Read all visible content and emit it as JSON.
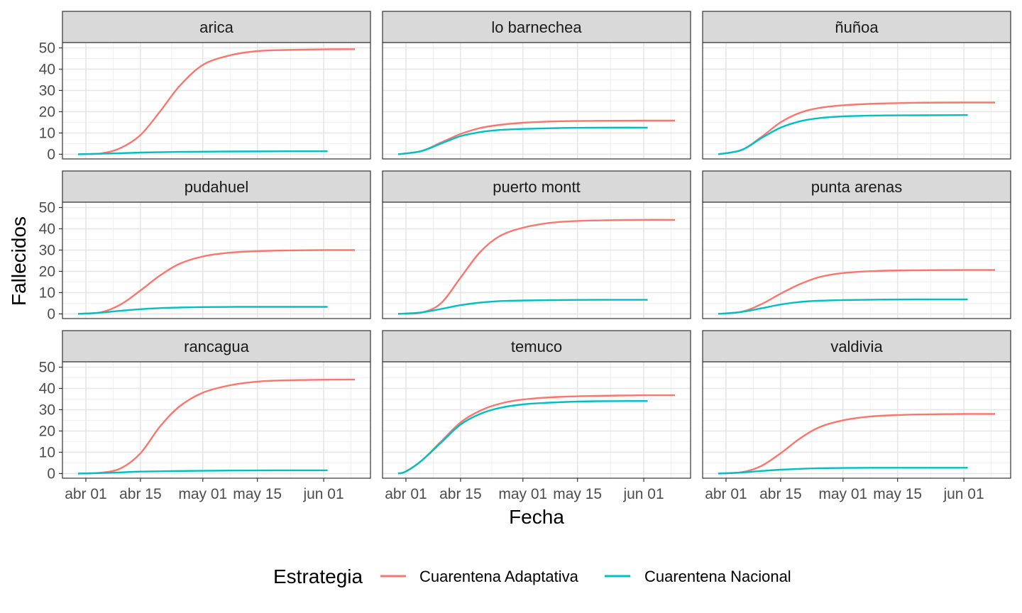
{
  "chart_data": {
    "type": "line",
    "layout": "facet-grid-3x3",
    "xlabel": "Fecha",
    "ylabel": "Fallecidos",
    "ylim": [
      0,
      50
    ],
    "y_ticks": [
      0,
      10,
      20,
      30,
      40,
      50
    ],
    "x_ticks": [
      {
        "date": "2020-04-01",
        "label": "abr 01"
      },
      {
        "date": "2020-04-15",
        "label": "abr 15"
      },
      {
        "date": "2020-05-01",
        "label": "may 01"
      },
      {
        "date": "2020-05-15",
        "label": "may 15"
      },
      {
        "date": "2020-06-01",
        "label": "jun 01"
      }
    ],
    "grid": true,
    "legend": {
      "title": "Estrategia",
      "position": "bottom",
      "entries": [
        {
          "label": "Cuarentena Adaptativa",
          "color": "#f8766d"
        },
        {
          "label": "Cuarentena Nacional",
          "color": "#00bfc4"
        }
      ]
    },
    "panels": [
      {
        "title": "arica",
        "series": [
          {
            "name": "Cuarentena Adaptativa",
            "x": [
              "2020-03-30",
              "2020-04-05",
              "2020-04-10",
              "2020-04-15",
              "2020-04-20",
              "2020-04-25",
              "2020-05-01",
              "2020-05-08",
              "2020-05-15",
              "2020-05-22",
              "2020-06-01",
              "2020-06-09"
            ],
            "y": [
              0,
              0.4,
              3,
              9,
              20,
              32,
              42,
              46.5,
              48.5,
              49,
              49.3,
              49.4
            ]
          },
          {
            "name": "Cuarentena Nacional",
            "x": [
              "2020-03-30",
              "2020-04-08",
              "2020-04-15",
              "2020-04-25",
              "2020-05-08",
              "2020-05-22",
              "2020-06-02"
            ],
            "y": [
              0,
              0.4,
              0.8,
              1.1,
              1.3,
              1.4,
              1.4
            ]
          }
        ]
      },
      {
        "title": "lo barnechea",
        "series": [
          {
            "name": "Cuarentena Adaptativa",
            "x": [
              "2020-03-30",
              "2020-04-05",
              "2020-04-10",
              "2020-04-15",
              "2020-04-20",
              "2020-04-25",
              "2020-05-01",
              "2020-05-10",
              "2020-05-20",
              "2020-06-01",
              "2020-06-09"
            ],
            "y": [
              0,
              1.5,
              5.5,
              9.5,
              12.3,
              13.8,
              14.8,
              15.5,
              15.7,
              15.8,
              15.8
            ]
          },
          {
            "name": "Cuarentena Nacional",
            "x": [
              "2020-03-30",
              "2020-04-05",
              "2020-04-10",
              "2020-04-15",
              "2020-04-20",
              "2020-04-25",
              "2020-05-01",
              "2020-05-10",
              "2020-05-20",
              "2020-06-02"
            ],
            "y": [
              0,
              1.5,
              5,
              8.5,
              10.4,
              11.4,
              11.9,
              12.3,
              12.5,
              12.5
            ]
          }
        ]
      },
      {
        "title": "ñuñoa",
        "series": [
          {
            "name": "Cuarentena Adaptativa",
            "x": [
              "2020-03-30",
              "2020-04-05",
              "2020-04-10",
              "2020-04-15",
              "2020-04-20",
              "2020-04-25",
              "2020-05-01",
              "2020-05-10",
              "2020-05-20",
              "2020-06-01",
              "2020-06-09"
            ],
            "y": [
              0,
              2,
              8,
              15,
              19.5,
              21.8,
              23,
              23.8,
              24.2,
              24.3,
              24.3
            ]
          },
          {
            "name": "Cuarentena Nacional",
            "x": [
              "2020-03-30",
              "2020-04-05",
              "2020-04-10",
              "2020-04-15",
              "2020-04-20",
              "2020-04-25",
              "2020-05-01",
              "2020-05-10",
              "2020-05-20",
              "2020-06-02"
            ],
            "y": [
              0,
              2,
              7.5,
              12.5,
              15.5,
              17,
              17.8,
              18.2,
              18.3,
              18.4
            ]
          }
        ]
      },
      {
        "title": "pudahuel",
        "series": [
          {
            "name": "Cuarentena Adaptativa",
            "x": [
              "2020-03-30",
              "2020-04-05",
              "2020-04-10",
              "2020-04-15",
              "2020-04-20",
              "2020-04-25",
              "2020-05-01",
              "2020-05-08",
              "2020-05-15",
              "2020-05-22",
              "2020-06-01",
              "2020-06-09"
            ],
            "y": [
              0,
              0.8,
              4.5,
              11,
              18,
              23.5,
              27,
              28.8,
              29.5,
              29.8,
              30,
              30
            ]
          },
          {
            "name": "Cuarentena Nacional",
            "x": [
              "2020-03-30",
              "2020-04-05",
              "2020-04-10",
              "2020-04-15",
              "2020-04-20",
              "2020-04-25",
              "2020-05-01",
              "2020-05-10",
              "2020-05-20",
              "2020-06-02"
            ],
            "y": [
              0,
              0.6,
              1.5,
              2.2,
              2.7,
              3,
              3.2,
              3.3,
              3.3,
              3.3
            ]
          }
        ]
      },
      {
        "title": "puerto montt",
        "series": [
          {
            "name": "Cuarentena Adaptativa",
            "x": [
              "2020-03-30",
              "2020-04-05",
              "2020-04-10",
              "2020-04-15",
              "2020-04-20",
              "2020-04-25",
              "2020-05-01",
              "2020-05-08",
              "2020-05-15",
              "2020-05-22",
              "2020-06-01",
              "2020-06-09"
            ],
            "y": [
              0,
              0.6,
              5,
              17,
              29,
              36.5,
              40.5,
              42.8,
              43.7,
              44,
              44.2,
              44.2
            ]
          },
          {
            "name": "Cuarentena Nacional",
            "x": [
              "2020-03-30",
              "2020-04-05",
              "2020-04-10",
              "2020-04-15",
              "2020-04-20",
              "2020-04-25",
              "2020-05-01",
              "2020-05-10",
              "2020-05-20",
              "2020-06-02"
            ],
            "y": [
              0,
              0.7,
              2.3,
              4.1,
              5.3,
              6,
              6.3,
              6.5,
              6.6,
              6.6
            ]
          }
        ]
      },
      {
        "title": "punta arenas",
        "series": [
          {
            "name": "Cuarentena Adaptativa",
            "x": [
              "2020-03-30",
              "2020-04-05",
              "2020-04-10",
              "2020-04-15",
              "2020-04-20",
              "2020-04-25",
              "2020-05-01",
              "2020-05-10",
              "2020-05-20",
              "2020-06-01",
              "2020-06-09"
            ],
            "y": [
              0,
              1,
              4.5,
              9.5,
              14,
              17.3,
              19.2,
              20.2,
              20.5,
              20.6,
              20.6
            ]
          },
          {
            "name": "Cuarentena Nacional",
            "x": [
              "2020-03-30",
              "2020-04-05",
              "2020-04-10",
              "2020-04-15",
              "2020-04-20",
              "2020-04-25",
              "2020-05-01",
              "2020-05-10",
              "2020-05-20",
              "2020-06-02"
            ],
            "y": [
              0,
              0.9,
              2.6,
              4.4,
              5.6,
              6.2,
              6.5,
              6.7,
              6.8,
              6.8
            ]
          }
        ]
      },
      {
        "title": "rancagua",
        "series": [
          {
            "name": "Cuarentena Adaptativa",
            "x": [
              "2020-03-30",
              "2020-04-05",
              "2020-04-10",
              "2020-04-15",
              "2020-04-20",
              "2020-04-25",
              "2020-05-01",
              "2020-05-08",
              "2020-05-15",
              "2020-05-22",
              "2020-06-01",
              "2020-06-09"
            ],
            "y": [
              0,
              0.4,
              2.5,
              9.5,
              22,
              31.5,
              38,
              41.5,
              43.2,
              43.8,
              44.1,
              44.2
            ]
          },
          {
            "name": "Cuarentena Nacional",
            "x": [
              "2020-03-30",
              "2020-04-08",
              "2020-04-15",
              "2020-04-25",
              "2020-05-08",
              "2020-05-22",
              "2020-06-02"
            ],
            "y": [
              0,
              0.4,
              0.9,
              1.2,
              1.4,
              1.5,
              1.5
            ]
          }
        ]
      },
      {
        "title": "temuco",
        "series": [
          {
            "name": "Cuarentena Adaptativa",
            "x": [
              "2020-03-30",
              "2020-04-01",
              "2020-04-05",
              "2020-04-10",
              "2020-04-15",
              "2020-04-20",
              "2020-04-25",
              "2020-05-01",
              "2020-05-10",
              "2020-05-20",
              "2020-06-01",
              "2020-06-09"
            ],
            "y": [
              0,
              1,
              6,
              15,
              24,
              29.5,
              32.8,
              34.8,
              36,
              36.5,
              36.8,
              36.8
            ]
          },
          {
            "name": "Cuarentena Nacional",
            "x": [
              "2020-03-30",
              "2020-04-01",
              "2020-04-05",
              "2020-04-10",
              "2020-04-15",
              "2020-04-20",
              "2020-04-25",
              "2020-05-01",
              "2020-05-10",
              "2020-05-20",
              "2020-06-02"
            ],
            "y": [
              0,
              1,
              6,
              14.5,
              23,
              28,
              30.8,
              32.5,
              33.5,
              34,
              34.1
            ]
          }
        ]
      },
      {
        "title": "valdivia",
        "series": [
          {
            "name": "Cuarentena Adaptativa",
            "x": [
              "2020-03-30",
              "2020-04-05",
              "2020-04-10",
              "2020-04-15",
              "2020-04-20",
              "2020-04-25",
              "2020-05-01",
              "2020-05-08",
              "2020-05-15",
              "2020-05-22",
              "2020-06-01",
              "2020-06-09"
            ],
            "y": [
              0,
              0.6,
              3.5,
              9.5,
              16.5,
              21.8,
              25,
              26.8,
              27.5,
              27.8,
              28,
              28
            ]
          },
          {
            "name": "Cuarentena Nacional",
            "x": [
              "2020-03-30",
              "2020-04-05",
              "2020-04-10",
              "2020-04-15",
              "2020-04-20",
              "2020-04-25",
              "2020-05-01",
              "2020-05-10",
              "2020-05-20",
              "2020-06-02"
            ],
            "y": [
              0,
              0.5,
              1.2,
              1.8,
              2.2,
              2.5,
              2.6,
              2.7,
              2.7,
              2.7
            ]
          }
        ]
      }
    ]
  }
}
